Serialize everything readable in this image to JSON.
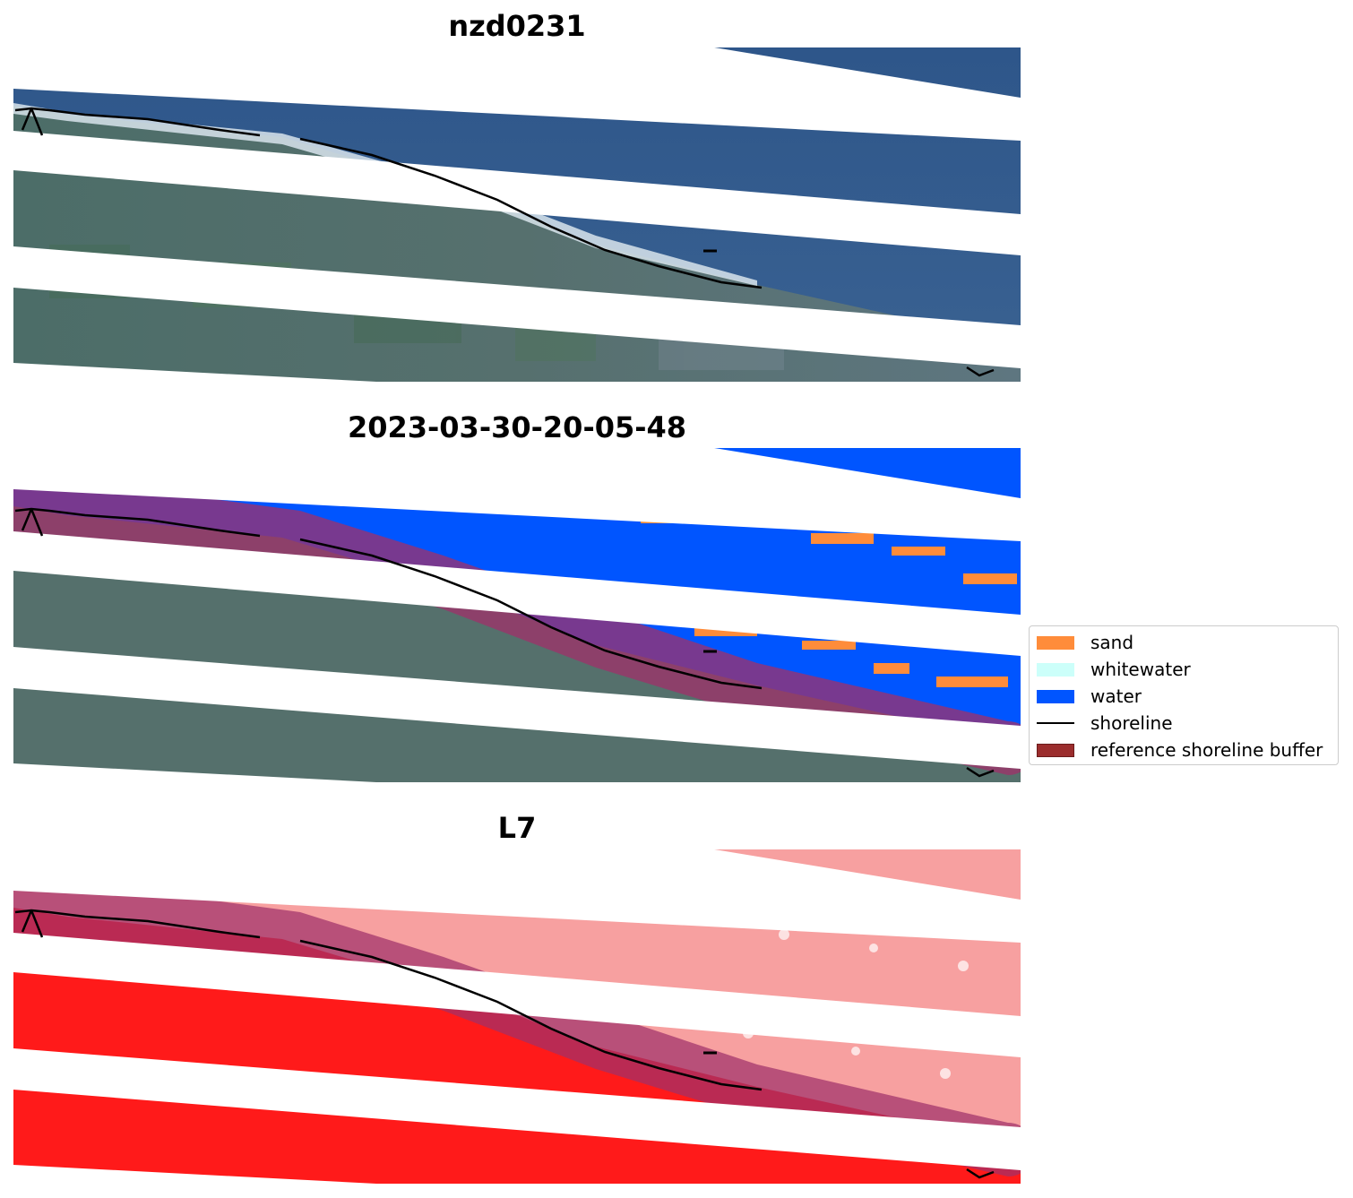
{
  "panels": [
    {
      "title": "nzd0231"
    },
    {
      "title": "2023-03-30-20-05-48"
    },
    {
      "title": "L7"
    }
  ],
  "legend": {
    "items": [
      {
        "label": "sand",
        "color": "#ff8c3a",
        "kind": "patch"
      },
      {
        "label": "whitewater",
        "color": "#ccfffa",
        "kind": "patch"
      },
      {
        "label": "water",
        "color": "#0055ff",
        "kind": "patch"
      },
      {
        "label": "shoreline",
        "color": "#000000",
        "kind": "line"
      },
      {
        "label": "reference shoreline buffer",
        "color": "#9b2d2d",
        "kind": "patch"
      }
    ]
  }
}
